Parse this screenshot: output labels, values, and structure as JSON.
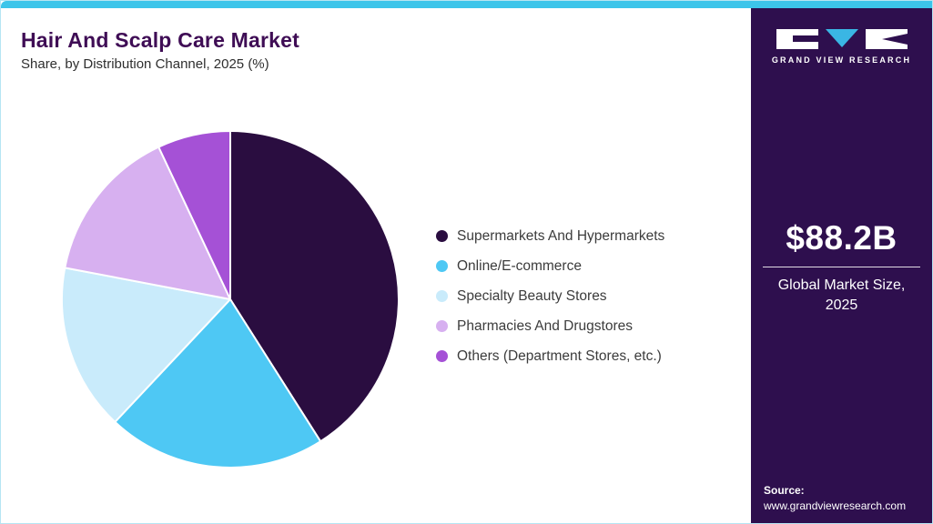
{
  "header": {
    "title": "Hair And Scalp Care Market",
    "subtitle": "Share, by Distribution Channel, 2025 (%)"
  },
  "chart_data": {
    "type": "pie",
    "title": "Hair And Scalp Care Market Share, by Distribution Channel, 2025 (%)",
    "start_angle_deg": 0,
    "direction": "clockwise",
    "legend_position": "right",
    "slices": [
      {
        "label": "Supermarkets And Hypermarkets",
        "value": 41,
        "color": "#2a0d40"
      },
      {
        "label": "Online/E-commerce",
        "value": 21,
        "color": "#4ec8f4"
      },
      {
        "label": "Specialty Beauty Stores",
        "value": 16,
        "color": "#c9ebfb"
      },
      {
        "label": "Pharmacies And Drugstores",
        "value": 15,
        "color": "#d7b0f0"
      },
      {
        "label": "Others (Department Stores, etc.)",
        "value": 7,
        "color": "#a551d6"
      }
    ]
  },
  "sidebar": {
    "logo_text": "GRAND VIEW RESEARCH",
    "market_size_value": "$88.2B",
    "market_size_label": "Global Market Size,\n2025",
    "source_label": "Source:",
    "source_url": "www.grandviewresearch.com"
  },
  "colors": {
    "top_bar": "#3cc5ea",
    "sidebar_bg": "#2e0f4e",
    "title": "#3f0d55",
    "legend_text": "#3c3c3c",
    "logo_triangle": "#3ab6e4"
  }
}
